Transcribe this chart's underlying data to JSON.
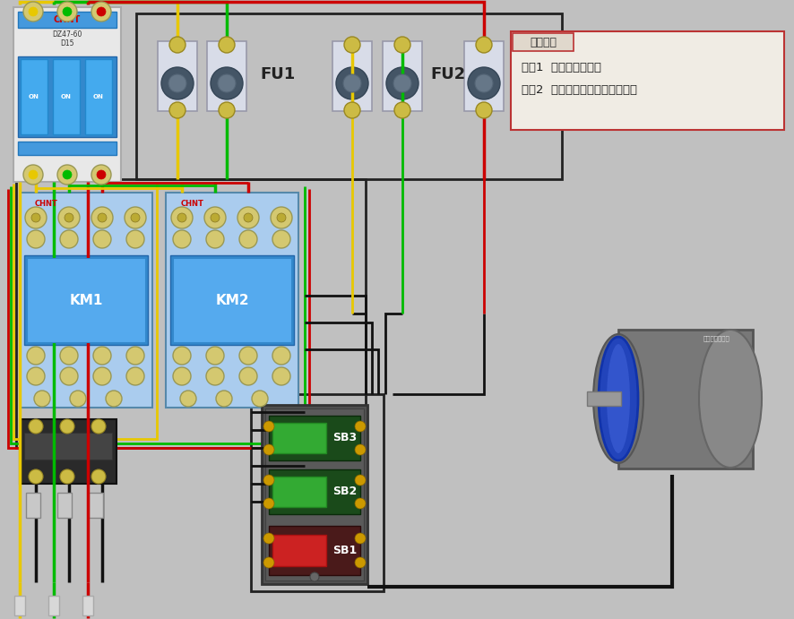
{
  "bg_color": "#c0c0c0",
  "instruction_box": {
    "title": "操作步骤",
    "line1": "步骤1  合上电源开关。",
    "line2": "步骤2  按动按钮，进行运行操作。",
    "border_color": "#bb3333",
    "bg_color": "#f0ece4",
    "title_bg": "#e0d8cc"
  },
  "wire_colors": {
    "yellow": "#e8c800",
    "green": "#00bb00",
    "red": "#cc0000",
    "black": "#111111",
    "white": "#e0e0e0"
  }
}
